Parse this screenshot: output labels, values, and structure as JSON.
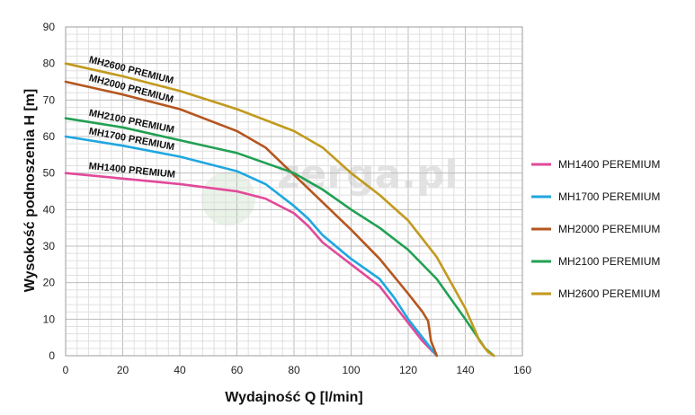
{
  "chart_data": {
    "type": "line",
    "xlabel": "Wydajność Q [l/min]",
    "ylabel": "Wysokość podnoszenia H [m]",
    "xlim": [
      0,
      160
    ],
    "ylim": [
      0,
      90
    ],
    "x_ticks": [
      0,
      20,
      40,
      60,
      80,
      100,
      120,
      140,
      160
    ],
    "y_ticks": [
      0,
      10,
      20,
      30,
      40,
      50,
      60,
      70,
      80,
      90
    ],
    "grid": true,
    "legend_position": "right",
    "watermark": "zerga.pl",
    "series": [
      {
        "name": "MH1400 PEREMIUM",
        "curve_label": "MH1400 PREMIUM",
        "color": "#e2499a",
        "x": [
          0,
          20,
          40,
          60,
          70,
          80,
          85,
          90,
          100,
          110,
          115,
          120,
          125,
          130
        ],
        "y": [
          50,
          48.5,
          47,
          45,
          43,
          39,
          35.5,
          31,
          25,
          19,
          14,
          9,
          4,
          0
        ]
      },
      {
        "name": "MH1700 PEREMIUM",
        "curve_label": "MH1700 PREMIUM",
        "color": "#1ea7e0",
        "x": [
          0,
          20,
          40,
          60,
          70,
          80,
          85,
          90,
          100,
          110,
          115,
          120,
          125,
          130
        ],
        "y": [
          60,
          57.5,
          54.5,
          50.5,
          47,
          41,
          37.5,
          33,
          26.5,
          21,
          16,
          10,
          5,
          0
        ]
      },
      {
        "name": "MH2000 PEREMIUM",
        "curve_label": "MH2000 PREMIUM",
        "color": "#b5561f",
        "x": [
          0,
          20,
          40,
          60,
          70,
          80,
          90,
          100,
          110,
          120,
          125,
          127,
          128,
          130
        ],
        "y": [
          75,
          71.5,
          67.5,
          61.5,
          57,
          49.5,
          42,
          34.5,
          26.5,
          17,
          12,
          9.5,
          4,
          0
        ]
      },
      {
        "name": "MH2100 PEREMIUM",
        "curve_label": "MH2100 PREMIUM",
        "color": "#21a052",
        "x": [
          0,
          20,
          40,
          60,
          80,
          90,
          100,
          110,
          120,
          130,
          140,
          147,
          150
        ],
        "y": [
          65,
          62.5,
          59,
          55.5,
          50,
          45.5,
          40,
          35,
          29,
          21,
          10,
          2,
          0
        ]
      },
      {
        "name": "MH2600 PEREMIUM",
        "curve_label": "MH2600 PREMIUM",
        "color": "#c29a1d",
        "x": [
          0,
          20,
          40,
          60,
          80,
          90,
          100,
          110,
          120,
          130,
          140,
          145,
          148,
          150
        ],
        "y": [
          80,
          76.5,
          72.5,
          67.5,
          61.5,
          57,
          50,
          44,
          37,
          27,
          13,
          4,
          1,
          0
        ]
      }
    ]
  }
}
